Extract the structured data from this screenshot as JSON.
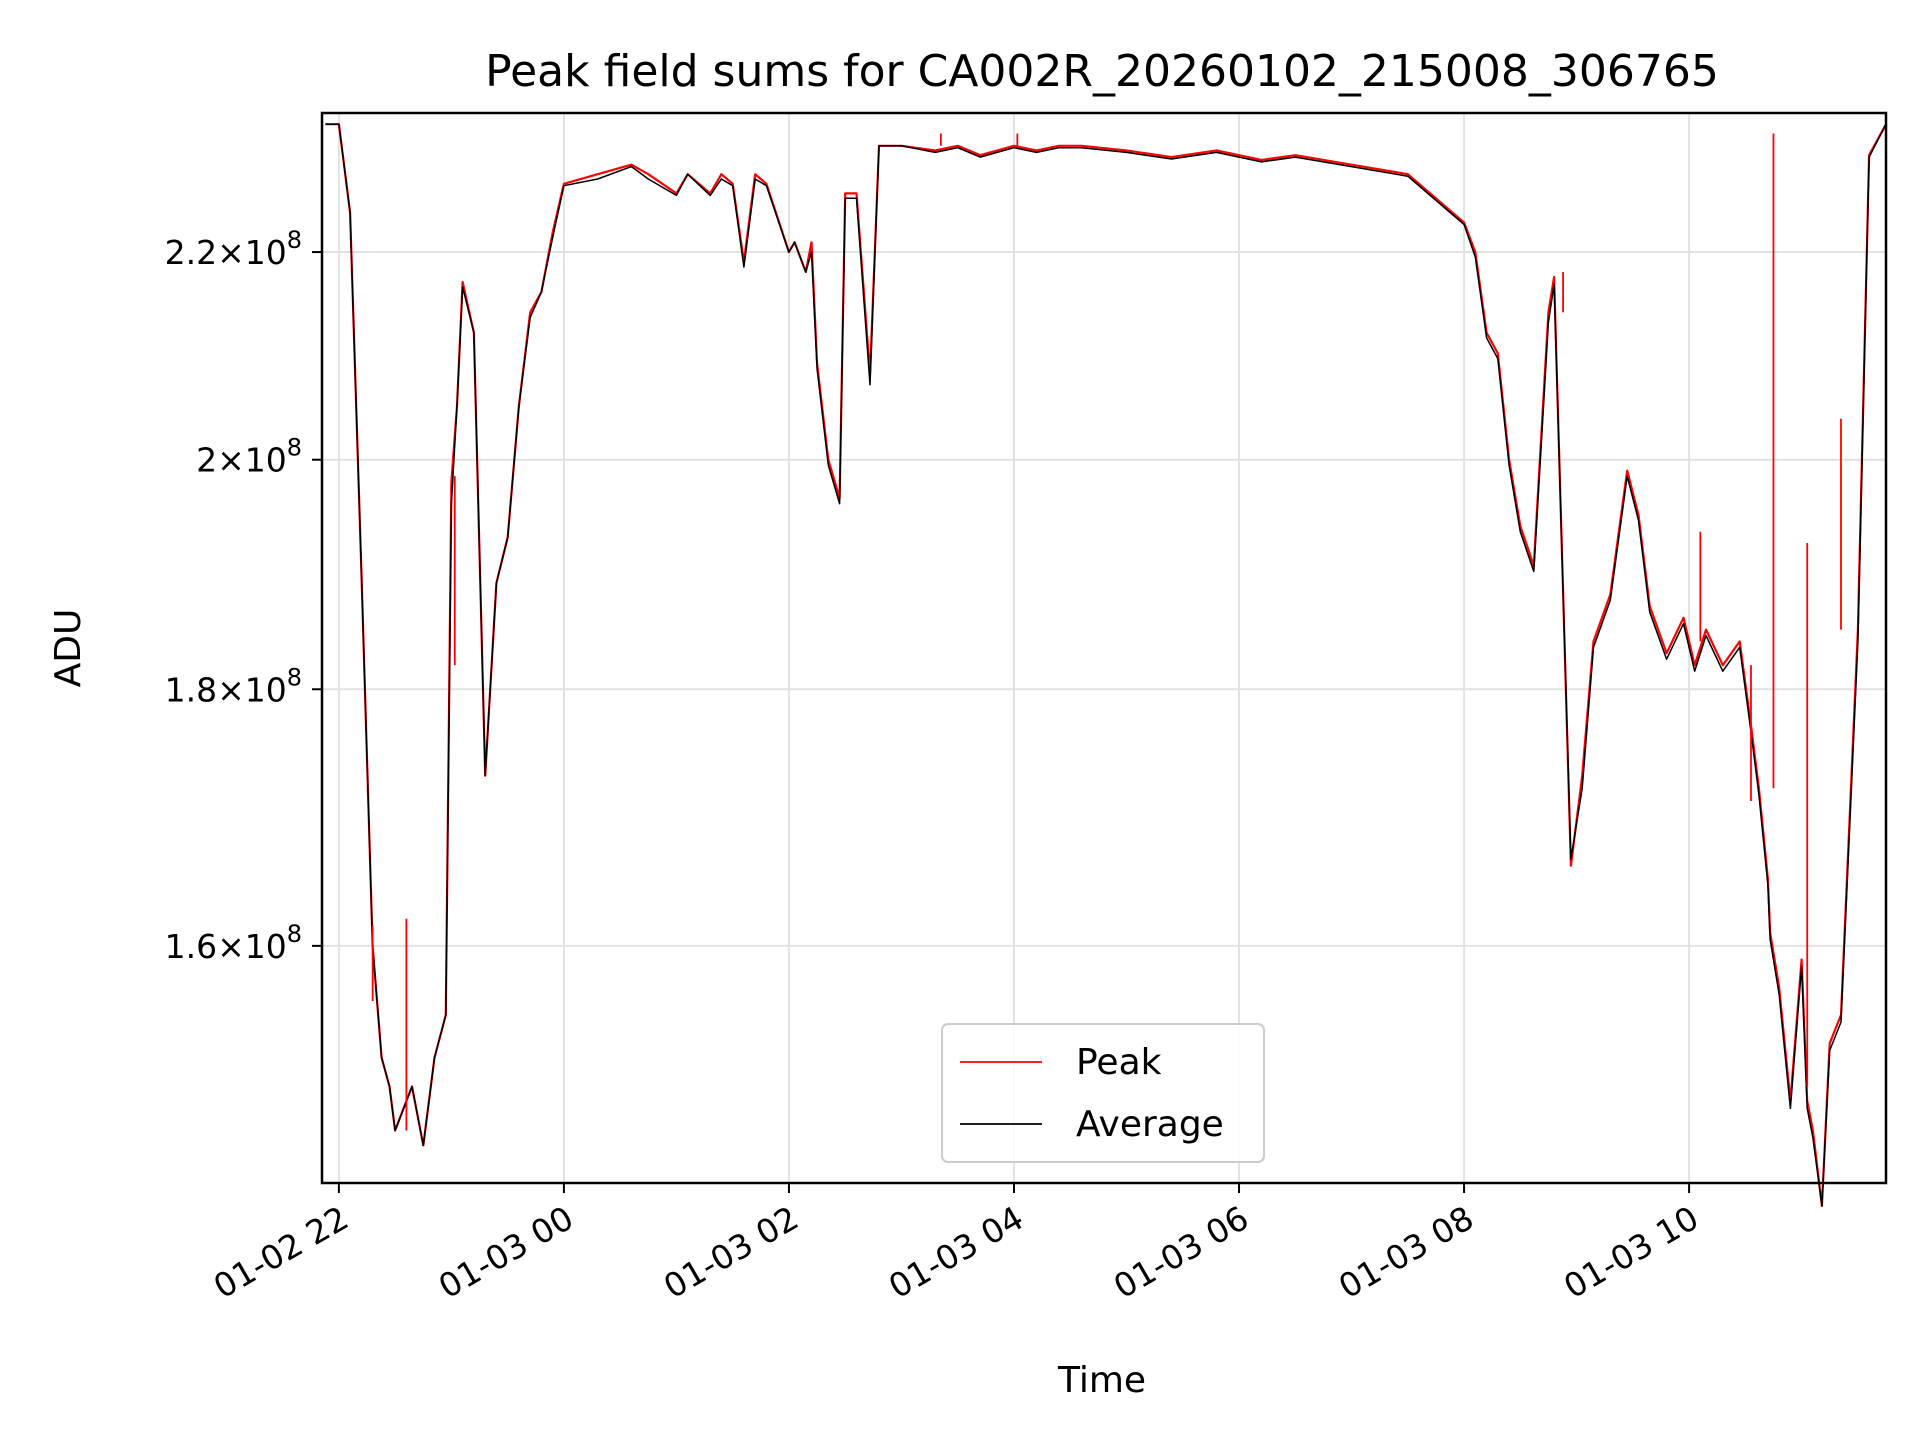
{
  "chart_data": {
    "type": "line",
    "title": "Peak field sums for CA002R_20260102_215008_306765",
    "xlabel": "Time",
    "ylabel": "ADU",
    "xlim": [
      -0.15,
      13.75
    ],
    "ylim": [
      143500000.0,
      234500000.0
    ],
    "x_ticks": [
      {
        "value": 0,
        "label": "01-02 22"
      },
      {
        "value": 2,
        "label": "01-03 00"
      },
      {
        "value": 4,
        "label": "01-03 02"
      },
      {
        "value": 6,
        "label": "01-03 04"
      },
      {
        "value": 8,
        "label": "01-03 06"
      },
      {
        "value": 10,
        "label": "01-03 08"
      },
      {
        "value": 12,
        "label": "01-03 10"
      }
    ],
    "y_ticks": [
      {
        "value": 160000000.0,
        "mantissa": "1.6",
        "exponent": "8"
      },
      {
        "value": 180000000.0,
        "mantissa": "1.8",
        "exponent": "8"
      },
      {
        "value": 200000000.0,
        "mantissa": "2",
        "exponent": "8"
      },
      {
        "value": 220000000.0,
        "mantissa": "2.2",
        "exponent": "8"
      }
    ],
    "y_scale": "log",
    "grid": true,
    "legend": {
      "location": "lower center",
      "entries": [
        "Peak",
        "Average"
      ]
    },
    "series": [
      {
        "name": "Peak",
        "color": "#ff0000",
        "x": [
          -0.12,
          0.0,
          0.1,
          0.2,
          0.3,
          0.38,
          0.45,
          0.5,
          0.55,
          0.65,
          0.75,
          0.85,
          0.95,
          1.0,
          1.05,
          1.1,
          1.2,
          1.3,
          1.4,
          1.5,
          1.6,
          1.7,
          1.8,
          1.9,
          2.0,
          2.3,
          2.6,
          2.75,
          3.0,
          3.1,
          3.3,
          3.4,
          3.5,
          3.6,
          3.7,
          3.8,
          4.0,
          4.05,
          4.15,
          4.2,
          4.25,
          4.35,
          4.45,
          4.5,
          4.6,
          4.72,
          4.8,
          5.0,
          5.3,
          5.5,
          5.7,
          6.0,
          6.2,
          6.4,
          6.6,
          7.0,
          7.4,
          7.8,
          8.0,
          8.2,
          8.5,
          9.0,
          9.5,
          10.0,
          10.1,
          10.2,
          10.3,
          10.4,
          10.5,
          10.62,
          10.75,
          10.8,
          10.95,
          11.05,
          11.15,
          11.3,
          11.45,
          11.55,
          11.65,
          11.8,
          11.95,
          12.05,
          12.15,
          12.3,
          12.45,
          12.55,
          12.62,
          12.7,
          12.72,
          12.8,
          12.9,
          13.0,
          13.05,
          13.1,
          13.18,
          13.25,
          13.35,
          13.5,
          13.6,
          13.75
        ],
        "values": [
          233300000.0,
          233300000.0,
          224000000.0,
          190000000.0,
          160000000.0,
          152000000.0,
          150000000.0,
          147000000.0,
          148000000.0,
          150000000.0,
          146000000.0,
          152000000.0,
          155000000.0,
          198000000.0,
          205000000.0,
          217000000.0,
          212000000.0,
          173000000.0,
          189000000.0,
          193000000.0,
          205000000.0,
          214000000.0,
          216000000.0,
          222000000.0,
          227000000.0,
          228000000.0,
          229000000.0,
          228000000.0,
          226000000.0,
          228000000.0,
          226000000.0,
          228000000.0,
          227000000.0,
          219000000.0,
          228000000.0,
          227000000.0,
          220000000.0,
          221000000.0,
          218000000.0,
          221000000.0,
          209000000.0,
          200000000.0,
          196500000.0,
          226000000.0,
          226000000.0,
          208000000.0,
          231000000.0,
          231000000.0,
          230500000.0,
          231000000.0,
          230000000.0,
          231000000.0,
          230500000.0,
          231000000.0,
          231000000.0,
          230500000.0,
          229800000.0,
          230500000.0,
          230000000.0,
          229500000.0,
          230000000.0,
          229000000.0,
          228000000.0,
          223000000.0,
          220000000.0,
          212000000.0,
          210000000.0,
          200000000.0,
          194000000.0,
          190500000.0,
          214000000.0,
          217500000.0,
          166000000.0,
          173000000.0,
          184000000.0,
          188000000.0,
          199000000.0,
          195000000.0,
          187000000.0,
          183000000.0,
          186000000.0,
          182000000.0,
          185000000.0,
          182000000.0,
          184000000.0,
          177000000.0,
          172000000.0,
          165000000.0,
          161000000.0,
          157000000.0,
          149000000.0,
          159000000.0,
          149000000.0,
          147000000.0,
          142000000.0,
          153000000.0,
          155000000.0,
          185000000.0,
          230000000.0,
          233300000.0
        ]
      },
      {
        "name": "Average",
        "color": "#000000",
        "x": [
          -0.12,
          0.0,
          0.1,
          0.2,
          0.3,
          0.38,
          0.45,
          0.5,
          0.55,
          0.65,
          0.75,
          0.85,
          0.95,
          1.0,
          1.05,
          1.1,
          1.2,
          1.3,
          1.4,
          1.5,
          1.6,
          1.7,
          1.8,
          1.9,
          2.0,
          2.3,
          2.6,
          2.75,
          3.0,
          3.1,
          3.3,
          3.4,
          3.5,
          3.6,
          3.7,
          3.8,
          4.0,
          4.05,
          4.15,
          4.2,
          4.25,
          4.35,
          4.45,
          4.5,
          4.6,
          4.72,
          4.8,
          5.0,
          5.3,
          5.5,
          5.7,
          6.0,
          6.2,
          6.4,
          6.6,
          7.0,
          7.4,
          7.8,
          8.0,
          8.2,
          8.5,
          9.0,
          9.5,
          10.0,
          10.1,
          10.2,
          10.3,
          10.4,
          10.5,
          10.62,
          10.75,
          10.8,
          10.95,
          11.05,
          11.15,
          11.3,
          11.45,
          11.55,
          11.65,
          11.8,
          11.95,
          12.05,
          12.15,
          12.3,
          12.45,
          12.55,
          12.62,
          12.7,
          12.72,
          12.8,
          12.9,
          13.0,
          13.05,
          13.1,
          13.18,
          13.25,
          13.35,
          13.5,
          13.6,
          13.75
        ],
        "values": [
          233300000.0,
          233300000.0,
          224000000.0,
          190000000.0,
          160000000.0,
          152000000.0,
          150000000.0,
          147000000.0,
          148000000.0,
          150000000.0,
          146000000.0,
          152000000.0,
          155000000.0,
          196000000.0,
          205000000.0,
          216500000.0,
          212000000.0,
          173000000.0,
          189000000.0,
          193000000.0,
          205000000.0,
          213500000.0,
          216000000.0,
          221500000.0,
          226800000.0,
          227500000.0,
          228800000.0,
          227500000.0,
          225800000.0,
          228000000.0,
          225800000.0,
          227500000.0,
          226800000.0,
          218500000.0,
          227500000.0,
          226800000.0,
          220000000.0,
          221000000.0,
          218000000.0,
          220000000.0,
          208500000.0,
          199500000.0,
          196000000.0,
          225500000.0,
          225500000.0,
          207000000.0,
          231000000.0,
          231000000.0,
          230300000.0,
          230800000.0,
          229800000.0,
          230800000.0,
          230300000.0,
          230800000.0,
          230800000.0,
          230300000.0,
          229600000.0,
          230300000.0,
          229800000.0,
          229300000.0,
          229800000.0,
          228800000.0,
          227800000.0,
          222800000.0,
          219500000.0,
          211500000.0,
          209500000.0,
          199500000.0,
          193500000.0,
          190000000.0,
          213000000.0,
          216800000.0,
          166500000.0,
          172000000.0,
          183500000.0,
          187500000.0,
          198500000.0,
          194500000.0,
          186500000.0,
          182500000.0,
          185500000.0,
          181500000.0,
          184500000.0,
          181500000.0,
          183500000.0,
          176500000.0,
          171500000.0,
          164500000.0,
          160500000.0,
          156500000.0,
          148500000.0,
          158500000.0,
          148500000.0,
          146500000.0,
          142000000.0,
          152500000.0,
          154500000.0,
          184000000.0,
          229800000.0,
          233300000.0
        ]
      }
    ],
    "spikes": [
      {
        "x": 0.3,
        "values": [
          161500000.0,
          156000000.0
        ]
      },
      {
        "x": 0.6,
        "values": [
          162000000.0,
          147000000.0
        ]
      },
      {
        "x": 1.03,
        "values": [
          198500000.0,
          182000000.0
        ]
      },
      {
        "x": 5.35,
        "values": [
          232300000.0,
          231000000.0
        ]
      },
      {
        "x": 6.03,
        "values": [
          232300000.0,
          231000000.0
        ]
      },
      {
        "x": 10.88,
        "values": [
          218000000.0,
          214000000.0
        ]
      },
      {
        "x": 12.1,
        "values": [
          193500000.0,
          184000000.0
        ]
      },
      {
        "x": 12.55,
        "values": [
          182000000.0,
          171000000.0
        ]
      },
      {
        "x": 12.75,
        "values": [
          232300000.0,
          172000000.0
        ]
      },
      {
        "x": 13.05,
        "values": [
          192500000.0,
          150000000.0
        ]
      },
      {
        "x": 13.35,
        "values": [
          203800000.0,
          185000000.0
        ]
      }
    ]
  }
}
